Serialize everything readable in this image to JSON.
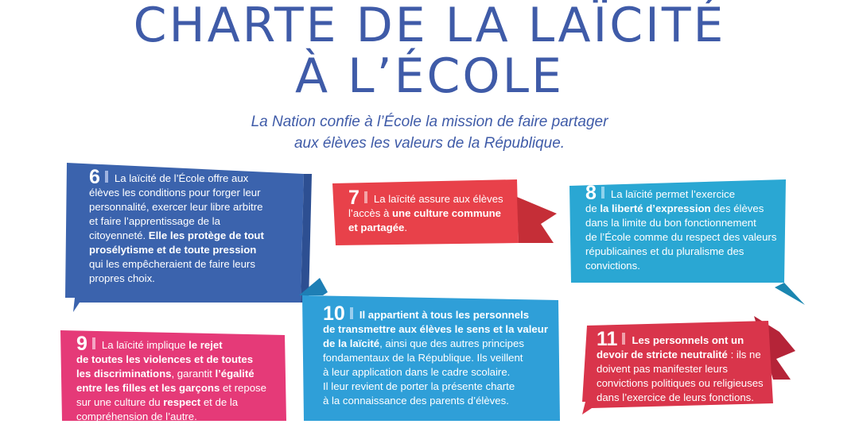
{
  "title_line1": "CHARTE DE LA LAÏCITÉ",
  "title_line2": "À L’ÉCOLE",
  "subtitle_line1": "La Nation confie à l’École la mission de faire partager",
  "subtitle_line2": "aux élèves les valeurs de la République.",
  "colors": {
    "title": "#3f5ba8",
    "card6": "#3b63ad",
    "card7": "#e8414a",
    "card8": "#2aa7d3",
    "card9": "#e53a78",
    "card10": "#2f9fd8",
    "card11": "#d9354b"
  },
  "cards": {
    "c6": {
      "number": "6",
      "text": [
        {
          "t": "La laïcité de l’École offre aux"
        },
        {
          "t": "élèves les conditions pour forger leur"
        },
        {
          "t": "personnalité, exercer leur libre arbitre"
        },
        {
          "t": "et faire l’apprentissage de la"
        },
        {
          "t": "citoyenneté. ",
          "b": "Elle les protège de tout"
        },
        {
          "b": "prosélytisme et de toute pression"
        },
        {
          "t": "qui les empêcheraient de faire leurs"
        },
        {
          "t": "propres choix."
        }
      ]
    },
    "c7": {
      "number": "7",
      "text": [
        {
          "t": "La laïcité assure aux élèves"
        },
        {
          "t": "l’accès à ",
          "b": "une culture commune"
        },
        {
          "b": "et partagée",
          "t2": "."
        }
      ]
    },
    "c8": {
      "number": "8",
      "text": [
        {
          "t": "La laïcité permet l’exercice"
        },
        {
          "t": "de ",
          "b": "la liberté d’expression",
          "t2": " des élèves"
        },
        {
          "t": "dans la limite du bon fonctionnement"
        },
        {
          "t": "de l’École comme du respect des valeurs"
        },
        {
          "t": "républicaines et du pluralisme des"
        },
        {
          "t": "convictions."
        }
      ]
    },
    "c9": {
      "number": "9",
      "text": [
        {
          "t": "La laïcité implique ",
          "b": "le rejet"
        },
        {
          "b": "de toutes les violences et de toutes"
        },
        {
          "b": "les discriminations",
          "t2": ", garantit ",
          "b2": "l’égalité"
        },
        {
          "b": "entre les filles et les garçons",
          "t2": " et repose"
        },
        {
          "t": "sur une culture du ",
          "b": "respect",
          "t2": " et de la"
        },
        {
          "t": "compréhension de l’autre."
        }
      ]
    },
    "c10": {
      "number": "10",
      "text": [
        {
          "b": "Il appartient à tous les personnels"
        },
        {
          "b": "de transmettre aux élèves le sens et la valeur"
        },
        {
          "b": "de la laïcité",
          "t2": ", ainsi que des autres principes"
        },
        {
          "t": "fondamentaux de la République. Ils veillent"
        },
        {
          "t": "à leur application dans le cadre scolaire."
        },
        {
          "t": "Il leur revient de porter la présente charte"
        },
        {
          "t": "à la connaissance des parents d’élèves."
        }
      ]
    },
    "c11": {
      "number": "11",
      "text": [
        {
          "b": "Les personnels ont un"
        },
        {
          "b": "devoir de stricte neutralité",
          "t2": " : ils ne"
        },
        {
          "t": "doivent pas manifester leurs"
        },
        {
          "t": "convictions politiques ou religieuses"
        },
        {
          "t": "dans l’exercice de leurs fonctions."
        }
      ]
    }
  }
}
